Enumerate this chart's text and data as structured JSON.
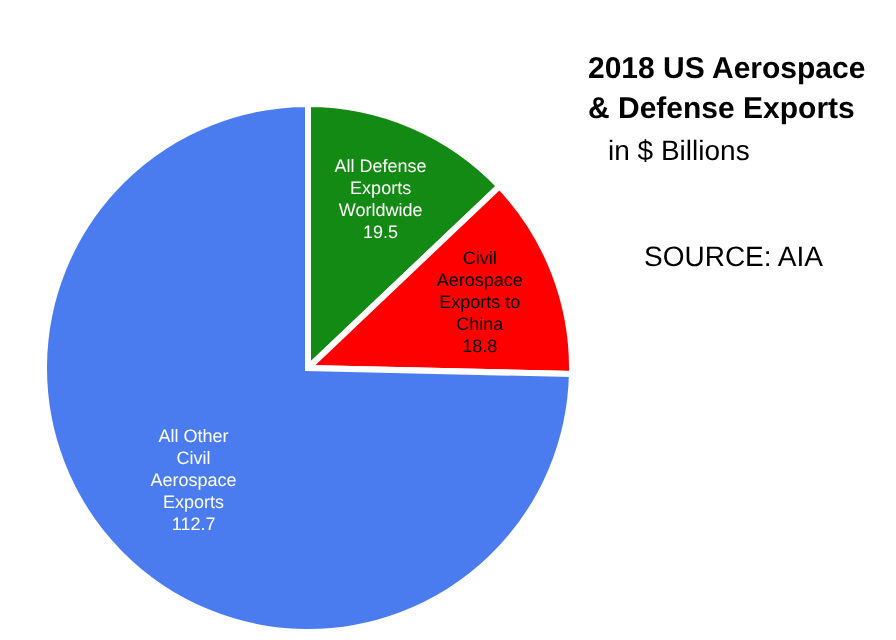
{
  "chart_data": {
    "type": "pie",
    "title": "2018 US Aerospace & Defense Exports",
    "subtitle": "in $ Billions",
    "categories": [
      "All Defense Exports Worldwide",
      "Civil Aerospace Exports to China",
      "All Other Civil Aerospace Exports"
    ],
    "values": [
      19.5,
      18.8,
      112.7
    ],
    "colors": [
      "#138a13",
      "#ff0000",
      "#4a7cf0"
    ],
    "data_labels": true,
    "legend": false,
    "annotations": [
      "SOURCE: AIA"
    ]
  }
}
